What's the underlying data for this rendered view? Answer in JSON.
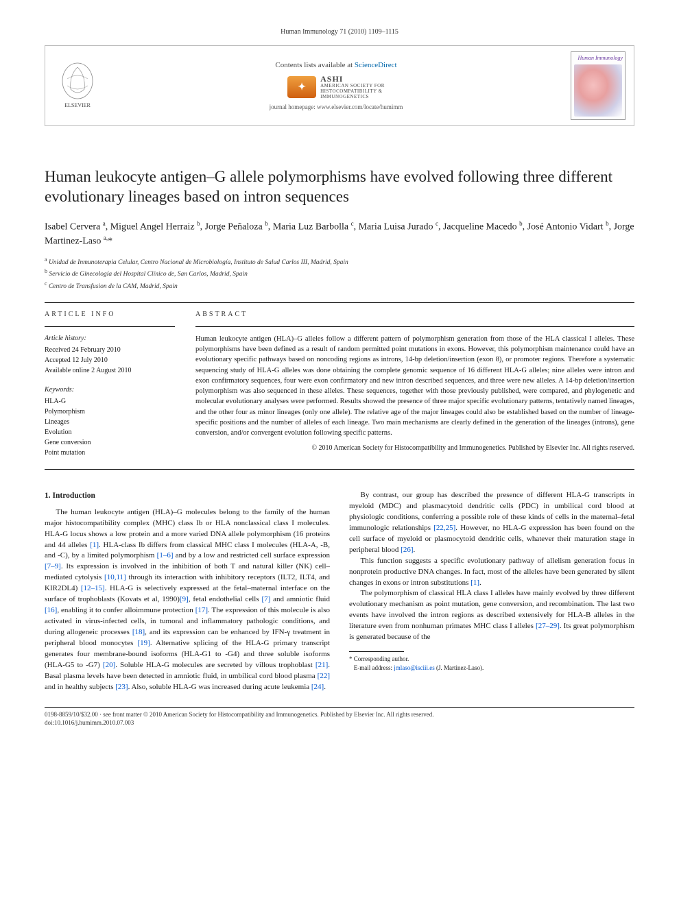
{
  "header": {
    "citation": "Human Immunology 71 (2010) 1109–1115"
  },
  "banner": {
    "contents_label": "Contents lists available at ",
    "scidirect": "ScienceDirect",
    "ashi_name": "ASHI",
    "ashi_sub1": "AMERICAN SOCIETY FOR",
    "ashi_sub2": "HISTOCOMPATIBILITY &",
    "ashi_sub3": "IMMUNOGENETICS",
    "journal_home": "journal homepage: www.elsevier.com/locate/humimm",
    "cover_title": "Human Immunology",
    "elsevier_label": "ELSEVIER"
  },
  "title": "Human leukocyte antigen–G allele polymorphisms have evolved following three different evolutionary lineages based on intron sequences",
  "authors_html": "Isabel Cervera <sup>a</sup>, Miguel Angel Herraiz <sup>b</sup>, Jorge Peñaloza <sup>b</sup>, Maria Luz Barbolla <sup>c</sup>, Maria Luisa Jurado <sup>c</sup>, Jacqueline Macedo <sup>b</sup>, José Antonio Vidart <sup>b</sup>, Jorge Martinez-Laso <sup>a,</sup>*",
  "affiliations": [
    "a Unidad de Inmunoterapia Celular, Centro Nacional de Microbiología, Instituto de Salud Carlos III, Madrid, Spain",
    "b Servicio de Ginecología del Hospital Clínico de, San Carlos, Madrid, Spain",
    "c Centro de Transfusion de la CAM, Madrid, Spain"
  ],
  "article_info_label": "ARTICLE INFO",
  "abstract_label": "ABSTRACT",
  "history": {
    "label": "Article history:",
    "received": "Received 24 February 2010",
    "accepted": "Accepted 12 July 2010",
    "online": "Available online 2 August 2010"
  },
  "keywords": {
    "label": "Keywords:",
    "items": [
      "HLA-G",
      "Polymorphism",
      "Lineages",
      "Evolution",
      "Gene conversion",
      "Point mutation"
    ]
  },
  "abstract": "Human leukocyte antigen (HLA)–G alleles follow a different pattern of polymorphism generation from those of the HLA classical I alleles. These polymorphisms have been defined as a result of random permitted point mutations in exons. However, this polymorphism maintenance could have an evolutionary specific pathways based on noncoding regions as introns, 14-bp deletion/insertion (exon 8), or promoter regions. Therefore a systematic sequencing study of HLA-G alleles was done obtaining the complete genomic sequence of 16 different HLA-G alleles; nine alleles were intron and exon confirmatory sequences, four were exon confirmatory and new intron described sequences, and three were new alleles. A 14-bp deletion/insertion polymorphism was also sequenced in these alleles. These sequences, together with those previously published, were compared, and phylogenetic and molecular evolutionary analyses were performed. Results showed the presence of three major specific evolutionary patterns, tentatively named lineages, and the other four as minor lineages (only one allele). The relative age of the major lineages could also be established based on the number of lineage-specific positions and the number of alleles of each lineage. Two main mechanisms are clearly defined in the generation of the lineages (introns), gene conversion, and/or convergent evolution following specific patterns.",
  "copyright": "© 2010 American Society for Histocompatibility and Immunogenetics. Published by Elsevier Inc. All rights reserved.",
  "section1": {
    "heading": "1. Introduction"
  },
  "corresponding": {
    "label": "* Corresponding author.",
    "email_label": "E-mail address: ",
    "email": "jmlaso@isciii.es",
    "email_name": " (J. Martinez-Laso)."
  },
  "footer": {
    "line1": "0198-8859/10/$32.00 · see front matter © 2010 American Society for Histocompatibility and Immunogenetics. Published by Elsevier Inc. All rights reserved.",
    "line2": "doi:10.1016/j.humimm.2010.07.003"
  },
  "colors": {
    "link": "#0055cc",
    "text": "#1a1a1a",
    "rule": "#000000",
    "banner_border": "#bbbbbb",
    "ashi_grad_top": "#f0a040",
    "ashi_grad_bot": "#d06010",
    "cover_title": "#6a3aa0"
  }
}
